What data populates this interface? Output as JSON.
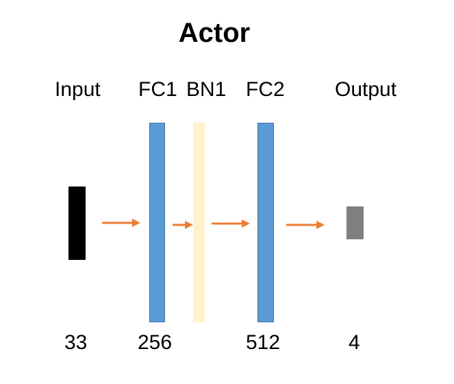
{
  "title": "Actor",
  "layers": [
    {
      "label": "Input",
      "size": "33",
      "color": "#000000"
    },
    {
      "label": "FC1",
      "size": "256",
      "color": "#5B9BD5"
    },
    {
      "label": "BN1",
      "size": "",
      "color": "#FFF2CC"
    },
    {
      "label": "FC2",
      "size": "512",
      "color": "#5B9BD5"
    },
    {
      "label": "Output",
      "size": "4",
      "color": "#808080"
    }
  ],
  "arrow_color": "#ED7D31"
}
